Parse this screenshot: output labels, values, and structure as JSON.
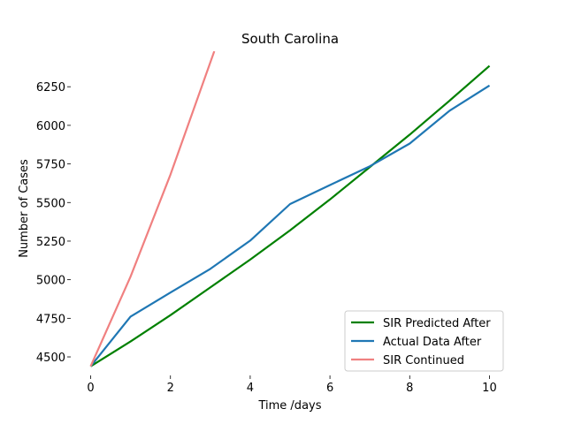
{
  "chart_data": {
    "type": "line",
    "title": "South Carolina",
    "xlabel": "Time /days",
    "ylabel": "Number of Cases",
    "xlim": [
      -0.5,
      10.5
    ],
    "ylim": [
      4380,
      6480
    ],
    "x_ticks": [
      0,
      2,
      4,
      6,
      8,
      10
    ],
    "y_ticks": [
      4500,
      4750,
      5000,
      5250,
      5500,
      5750,
      6000,
      6250
    ],
    "grid": false,
    "legend_position": "lower-right",
    "series": [
      {
        "name": "SIR Predicted After",
        "color": "#008000",
        "x": [
          0,
          1,
          2,
          3,
          4,
          5,
          6,
          7,
          8,
          9,
          10
        ],
        "y": [
          4439,
          4600,
          4770,
          4950,
          5130,
          5320,
          5520,
          5730,
          5940,
          6160,
          6385
        ]
      },
      {
        "name": "Actual Data After",
        "color": "#1f77b4",
        "x": [
          0,
          1,
          2,
          3,
          4,
          5,
          6,
          7,
          8,
          9,
          10
        ],
        "y": [
          4439,
          4761,
          4917,
          5070,
          5253,
          5490,
          5613,
          5735,
          5882,
          6095,
          6258
        ]
      },
      {
        "name": "SIR Continued",
        "color": "#f08080",
        "x": [
          0,
          1,
          2,
          3.1
        ],
        "y": [
          4439,
          5020,
          5680,
          6480
        ]
      }
    ]
  }
}
